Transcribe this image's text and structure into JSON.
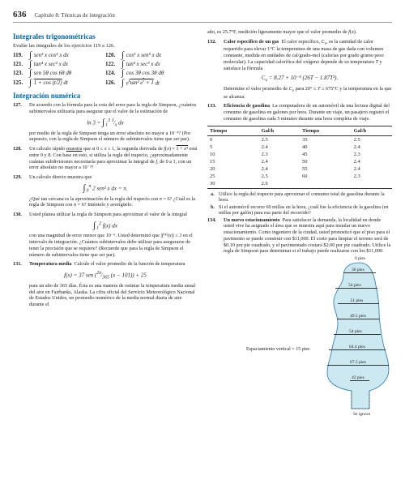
{
  "header": {
    "page_number": "636",
    "chapter": "Capítulo 8: Técnicas de integración"
  },
  "left_column": {
    "section1": {
      "heading": "Integrales trigonométricas",
      "instruction": "Evalúe las integrales de los ejercicios 119 a 126.",
      "exercises": [
        {
          "num": "119.",
          "formula_html": "<span class='integral'>∫</span> sen³ <i>x</i> cos⁴ <i>x dx</i>"
        },
        {
          "num": "120.",
          "formula_html": "<span class='integral'>∫</span> cos⁵ <i>x</i> sen⁵ <i>x dx</i>"
        },
        {
          "num": "121.",
          "formula_html": "<span class='integral'>∫</span> tan⁴ <i>x</i> sec² <i>x dx</i>"
        },
        {
          "num": "122.",
          "formula_html": "<span class='integral'>∫</span> tan³ <i>x</i> sec³ <i>x dx</i>"
        },
        {
          "num": "123.",
          "formula_html": "<span class='integral'>∫</span> sen 5θ cos 6θ <i>dθ</i>"
        },
        {
          "num": "124.",
          "formula_html": "<span class='integral'>∫</span> cos 3θ cos 3θ <i>dθ</i>"
        },
        {
          "num": "125.",
          "formula_html": "<span class='integral'>∫</span> <span class='sqrt'>1 + cos (<i>t</i>/2)</span> <i>dt</i>"
        },
        {
          "num": "126.",
          "formula_html": "<span class='integral'>∫</span> <i>e</i><sup><i>t</i></sup><span class='sqrt'>tan² <i>e</i><sup><i>t</i></sup> + 1</span> <i>dt</i>"
        }
      ]
    },
    "section2": {
      "heading": "Integración numérica",
      "problems": [
        {
          "num": "127.",
          "text": "De acuerdo con la fórmula para la cota del error para la regla de Simpson, ¿cuántos subintervalos utilizaría para asegurar que el valor de la estimación de",
          "formula_html": "ln 3 = <span class='integral'>∫</span><sub>1</sub><sup>3</sup> <sup>1</sup>⁄<sub><i>x</i></sub> <i>dx</i>",
          "text2": "por medio de la regla de Simpson tenga un error absoluto no mayor a 10⁻⁴? (Por supuesto, con la regla de Simpson el número de subintervalos tiene que ser par)."
        },
        {
          "num": "128.",
          "text_html": "Un cálculo rápido <u>muestra</u> que si 0 ≤ <i>x</i> ≤ 1, la segunda derivada de <i>f</i>(<i>x</i>) = <span class='sqrt'>1 + <i>x</i>⁴</span> está entre 0 y 8. Con base en esto, si utiliza la regla del trapecio, ¿aproximadamente cuántas subdivisiones necesitaría para aproximar la integral de <i>f</i>, de 0 a 1, con un error absoluto no mayor a 10⁻³?"
        },
        {
          "num": "129.",
          "text": "Un cálculo directo muestra que",
          "formula_html": "<span class='integral'>∫</span><sub>0</sub><sup>π</sup> 2 sen² <i>x dx</i> = π.",
          "text2_html": "¿Qué tan cercana es la aproximación de la regla del trapecio con <i>n</i> = 6? ¿Cuál es la regla de Simpson con <i>n</i> = 6? Inténtelo y averígüelo."
        },
        {
          "num": "130.",
          "text": "Usted planea utilizar la regla de Simpson para aproximar el valor de la integral",
          "formula_html": "<span class='integral'>∫</span><sub>1</sub><sup>2</sup> <i>f</i>(<i>x</i>) <i>dx</i>",
          "text2_html": "con una magnitud de error menor que 10⁻⁵. Usted determinó que |<i>f</i>⁽⁴⁾(<i>x</i>)| ≤ 3 en el intervalo de integración. ¿Cuántos subintervalos debe utilizar para asegurarse de tener la precisión que se requiere? (Recuerde que para la regla de Simpson el número de subintervalos tiene que ser par)."
        },
        {
          "num": "131.",
          "title": "Temperatura media",
          "text": "Calcule el valor promedio de la función de temperatura",
          "formula_html": "<i>f</i>(<i>x</i>) = 37 sen (<sup>2π</sup>⁄<sub>365</sub> (<i>x</i> − 101)) + 25",
          "text2": "para un año de 365 días. Ésta es una manera de estimar la temperatura media anual del aire en Fairbanks, Alaska. La cifra oficial del Servicio Meteorológico Nacional de Estados Unidos, un promedio numérico de la media normal diaria de aire durante el"
        }
      ]
    }
  },
  "right_column": {
    "continuation": {
      "text_html": "año, es 25.7°F, medición ligeramente mayor que el valor promedio de <i>f</i>(<i>x</i>)."
    },
    "problems": [
      {
        "num": "132.",
        "title": "Calor específico de un gas",
        "text_html": "El calor específico, <i>C<sub>v</sub></i>, es la cantidad de calor requerido para elevar 1°C la temperatura de una masa de gas dada con volumen constante, medida en unidades de cal/grado-mol (calorías por grado gramo peso molecular). La capacidad calorífica del oxígeno depende de su temperatura <i>T</i> y satisface la fórmula",
        "formula_html": "<i>C<sub>v</sub></i> = 8.27 + 10⁻⁵ (26<i>T</i> − 1.87<i>T</i>²).",
        "text2_html": "Determine el valor promedio de <i>C<sub>v</sub></i> para 20° ≤ <i>T</i> ≤ 675°C y la temperatura en la que se alcanza."
      },
      {
        "num": "133.",
        "title": "Eficiencia de gasolina",
        "text": "La computadora de un automóvil da una lectura digital del consumo de gasolina en galones por hora. Durante un viaje, un pasajero registró el consumo de gasolina cada 5 minutos durante una hora completa de viaje.",
        "table": {
          "headers": [
            "Tiempo",
            "Gal/h",
            "Tiempo",
            "Gal/h"
          ],
          "rows": [
            [
              "0",
              "2.5",
              "35",
              "2.5"
            ],
            [
              "5",
              "2.4",
              "40",
              "2.4"
            ],
            [
              "10",
              "2.3",
              "45",
              "2.3"
            ],
            [
              "15",
              "2.4",
              "50",
              "2.4"
            ],
            [
              "20",
              "2.4",
              "55",
              "2.4"
            ],
            [
              "25",
              "2.5",
              "60",
              "2.3"
            ],
            [
              "30",
              "2.6",
              "",
              ""
            ]
          ]
        },
        "subitems": [
          {
            "label": "a.",
            "text": "Utilice la regla del trapecio para aproximar el consumo total de gasolina durante la hora."
          },
          {
            "label": "b.",
            "text": "Si el automóvil recorre 60 millas en la hora, ¿cuál fue la eficiencia de la gasolina (en millas por galón) para esa parte del recorrido?"
          }
        ]
      },
      {
        "num": "134.",
        "title": "Un nuevo estacionamiento",
        "text": "Para satisfacer la demanda, la localidad en donde usted vive ha asignado el área que se muestra aquí para instalar un nuevo estacionamiento. Como ingeniero de la ciudad, usted pronosticó que el piso para el pavimento se puede construir con $11,000. El costo para limpiar el terreno será de $0.10 por pie cuadrado, y el pavimentado costará $2.00 por pie cuadrado. Utilice la regla de Simpson para determinar si el trabajo puede realizarse con los $11,000."
      }
    ],
    "diagram": {
      "spacing_label": "Espaciamiento vertical = 15 pies",
      "top_label": "0 pies",
      "measurements": [
        "36 pies",
        "54 pies",
        "51 pies",
        "49.5 pies",
        "54 pies",
        "64.4 pies",
        "67.5 pies",
        "42 pies"
      ],
      "ignore_label": "Se ignora",
      "colors": {
        "fill": "#cce8f0",
        "stroke": "#2277aa"
      }
    }
  }
}
